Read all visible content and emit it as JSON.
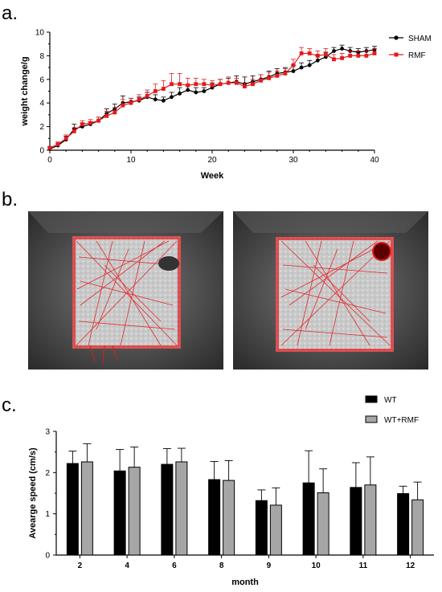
{
  "panels": {
    "a": "a.",
    "b": "b.",
    "c": "c."
  },
  "chart_data": [
    {
      "type": "line",
      "panel": "a.",
      "title": "",
      "xlabel": "Week",
      "ylabel": "weight change/g",
      "xlim": [
        0,
        40
      ],
      "ylim": [
        0,
        10
      ],
      "xticks": [
        "0",
        "10",
        "20",
        "30",
        "40"
      ],
      "yticks": [
        "0",
        "2",
        "4",
        "6",
        "8",
        "10"
      ],
      "legend_position": "top-right",
      "series": [
        {
          "name": "SHAM",
          "color": "#000000",
          "marker": "circle",
          "x": [
            0,
            1,
            2,
            3,
            4,
            5,
            6,
            7,
            8,
            9,
            10,
            11,
            12,
            13,
            14,
            15,
            16,
            17,
            18,
            19,
            20,
            21,
            22,
            23,
            24,
            25,
            26,
            27,
            28,
            29,
            30,
            31,
            32,
            33,
            34,
            35,
            36,
            37,
            38,
            39,
            40
          ],
          "y": [
            0.1,
            0.4,
            0.9,
            1.8,
            2.0,
            2.2,
            2.5,
            3.1,
            3.5,
            4.0,
            4.1,
            4.2,
            4.5,
            4.3,
            4.2,
            4.5,
            4.8,
            5.1,
            4.9,
            5.0,
            5.3,
            5.6,
            5.7,
            5.8,
            5.6,
            5.8,
            6.0,
            6.2,
            6.5,
            6.6,
            6.7,
            7.0,
            7.2,
            7.6,
            7.9,
            8.4,
            8.6,
            8.4,
            8.3,
            8.4,
            8.5
          ],
          "err": [
            0.1,
            0.2,
            0.3,
            0.4,
            0.3,
            0.2,
            0.3,
            0.4,
            0.4,
            0.6,
            0.3,
            0.3,
            0.4,
            0.4,
            0.3,
            0.4,
            0.5,
            0.4,
            0.4,
            0.3,
            0.4,
            0.4,
            0.4,
            0.5,
            0.6,
            0.5,
            0.4,
            0.5,
            0.4,
            0.4,
            0.5,
            0.4,
            0.4,
            0.4,
            0.4,
            0.3,
            0.3,
            0.3,
            0.3,
            0.3,
            0.3
          ]
        },
        {
          "name": "RMF",
          "color": "#e41a1c",
          "marker": "square",
          "x": [
            0,
            1,
            2,
            3,
            4,
            5,
            6,
            7,
            8,
            9,
            10,
            11,
            12,
            13,
            14,
            15,
            16,
            17,
            18,
            19,
            20,
            21,
            22,
            23,
            24,
            25,
            26,
            27,
            28,
            29,
            30,
            31,
            32,
            33,
            34,
            35,
            36,
            37,
            38,
            39,
            40
          ],
          "y": [
            0.2,
            0.5,
            1.0,
            1.6,
            2.2,
            2.3,
            2.5,
            2.9,
            3.2,
            3.8,
            4.0,
            4.3,
            4.6,
            5.0,
            5.2,
            5.6,
            5.6,
            5.5,
            5.6,
            5.6,
            5.5,
            5.6,
            5.7,
            5.7,
            5.4,
            5.6,
            5.9,
            6.1,
            6.3,
            6.5,
            7.2,
            8.2,
            8.2,
            8.0,
            8.1,
            7.7,
            7.8,
            8.0,
            8.0,
            8.0,
            8.2
          ],
          "err": [
            0.1,
            0.2,
            0.3,
            0.3,
            0.3,
            0.3,
            0.3,
            0.4,
            0.4,
            0.5,
            0.4,
            0.4,
            0.5,
            0.6,
            0.7,
            0.9,
            0.9,
            0.6,
            0.5,
            0.4,
            0.4,
            0.4,
            0.5,
            0.4,
            0.3,
            0.4,
            0.5,
            0.5,
            0.4,
            0.4,
            0.5,
            0.5,
            0.4,
            0.4,
            0.5,
            0.4,
            0.4,
            0.4,
            0.4,
            0.4,
            0.4
          ]
        }
      ]
    },
    {
      "type": "bar",
      "panel": "c.",
      "title": "",
      "xlabel": "month",
      "ylabel": "Avearge speed (cm/s)",
      "ylim": [
        0,
        3
      ],
      "yticks": [
        "0",
        "1",
        "2",
        "3"
      ],
      "categories": [
        "2",
        "4",
        "6",
        "8",
        "9",
        "10",
        "11",
        "12"
      ],
      "legend_position": "top-right",
      "series": [
        {
          "name": "WT",
          "color": "#000000",
          "values": [
            2.22,
            2.04,
            2.2,
            1.83,
            1.32,
            1.75,
            1.64,
            1.49
          ],
          "err": [
            0.3,
            0.52,
            0.38,
            0.44,
            0.26,
            0.78,
            0.6,
            0.18
          ]
        },
        {
          "name": "WT+RMF",
          "color": "#a6a6a6",
          "values": [
            2.26,
            2.13,
            2.26,
            1.81,
            1.21,
            1.51,
            1.7,
            1.34
          ],
          "err": [
            0.44,
            0.49,
            0.33,
            0.48,
            0.42,
            0.58,
            0.68,
            0.43
          ]
        }
      ]
    }
  ],
  "images": [
    {
      "name": "open-field-track-sham",
      "description_icon": "mouse-track-image"
    },
    {
      "name": "open-field-track-rmf",
      "description_icon": "mouse-track-image"
    }
  ]
}
